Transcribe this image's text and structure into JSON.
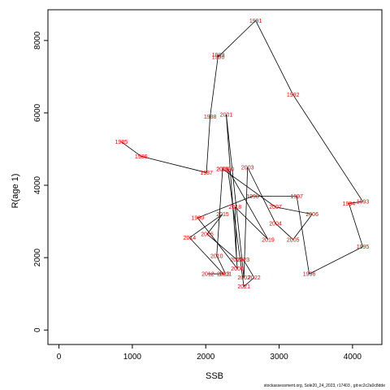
{
  "chart_data": {
    "type": "line",
    "title": "",
    "xlabel": "SSB",
    "ylabel": "R(age 1)",
    "xlim": [
      -150,
      4400
    ],
    "ylim": [
      -400,
      8850
    ],
    "xticks": [
      0,
      1000,
      2000,
      3000,
      4000
    ],
    "yticks": [
      0,
      2000,
      4000,
      6000,
      8000
    ],
    "grid": false,
    "points": [
      {
        "year": "1985",
        "x": 850,
        "y": 5200
      },
      {
        "year": "1986",
        "x": 1120,
        "y": 4800
      },
      {
        "year": "1987",
        "x": 2010,
        "y": 4350
      },
      {
        "year": "1988",
        "x": 2060,
        "y": 5900
      },
      {
        "year": "1989",
        "x": 2170,
        "y": 7600
      },
      {
        "year": "1990",
        "x": 2170,
        "y": 7550
      },
      {
        "year": "1991",
        "x": 2680,
        "y": 8550
      },
      {
        "year": "1992",
        "x": 3190,
        "y": 6500
      },
      {
        "year": "1993",
        "x": 4140,
        "y": 3550
      },
      {
        "year": "1994",
        "x": 3950,
        "y": 3500
      },
      {
        "year": "1995",
        "x": 4140,
        "y": 2300
      },
      {
        "year": "1996",
        "x": 3410,
        "y": 1550
      },
      {
        "year": "1997",
        "x": 3240,
        "y": 3700
      },
      {
        "year": "1998",
        "x": 2640,
        "y": 3700
      },
      {
        "year": "1999",
        "x": 1890,
        "y": 3100
      },
      {
        "year": "2000",
        "x": 2430,
        "y": 1700
      },
      {
        "year": "2001",
        "x": 2280,
        "y": 5950
      },
      {
        "year": "2002",
        "x": 2520,
        "y": 1450
      },
      {
        "year": "2003",
        "x": 2570,
        "y": 4500
      },
      {
        "year": "2004",
        "x": 2950,
        "y": 2950
      },
      {
        "year": "2005",
        "x": 3190,
        "y": 2500
      },
      {
        "year": "2006",
        "x": 3450,
        "y": 3200
      },
      {
        "year": "2007",
        "x": 2950,
        "y": 3400
      },
      {
        "year": "2008",
        "x": 2230,
        "y": 4450
      },
      {
        "year": "2009",
        "x": 2230,
        "y": 4450
      },
      {
        "year": "2010",
        "x": 2150,
        "y": 2050
      },
      {
        "year": "2011",
        "x": 2270,
        "y": 1550
      },
      {
        "year": "2012",
        "x": 2030,
        "y": 1550
      },
      {
        "year": "2013",
        "x": 2240,
        "y": 1550
      },
      {
        "year": "2014",
        "x": 1780,
        "y": 2550
      },
      {
        "year": "2015",
        "x": 2230,
        "y": 3200
      },
      {
        "year": "2016",
        "x": 2020,
        "y": 2650
      },
      {
        "year": "2017",
        "x": 2420,
        "y": 1950
      },
      {
        "year": "2018",
        "x": 2400,
        "y": 3400
      },
      {
        "year": "2019",
        "x": 2850,
        "y": 2500
      },
      {
        "year": "2020",
        "x": 2300,
        "y": 4450
      },
      {
        "year": "2021",
        "x": 2520,
        "y": 1200
      },
      {
        "year": "2022",
        "x": 2660,
        "y": 1450
      },
      {
        "year": "2023",
        "x": 2510,
        "y": 1950
      }
    ]
  },
  "colors": {
    "line": "#000000",
    "labels": "#ff0000",
    "axes": "#000000"
  },
  "footer_text": "stockassessment.org, Sole20_24_2023, r17403 , git:ec2c2a0c8dde"
}
